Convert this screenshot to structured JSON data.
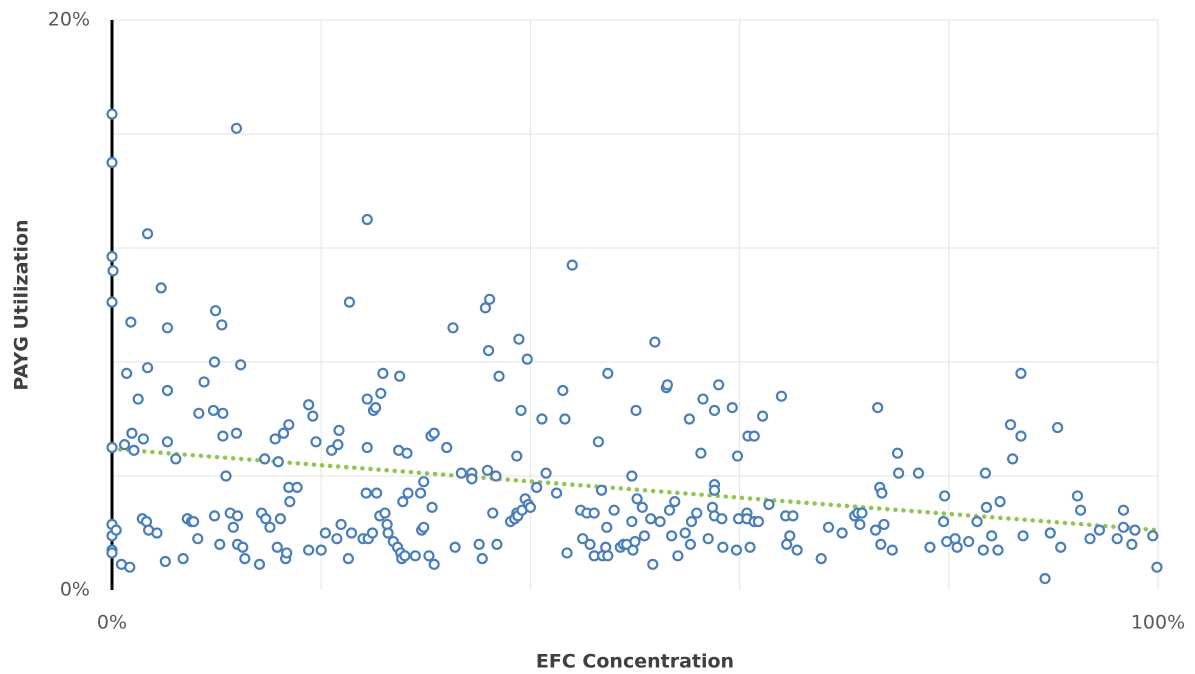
{
  "chart_data": {
    "type": "scatter",
    "x_label": "EFC Concentration",
    "y_label": "PAYG Utilization",
    "color": "#4a7ebb",
    "xlim": [
      0,
      100
    ],
    "ylim": [
      0,
      20
    ],
    "xticks": [
      {
        "value": 0,
        "label": "0%"
      },
      {
        "value": 100,
        "label": "100%"
      }
    ],
    "yticks": [
      {
        "value": 0,
        "label": "0%"
      },
      {
        "value": 20,
        "label": "20%"
      }
    ],
    "xgrid": [
      20,
      40,
      60,
      80,
      100
    ],
    "ygrid": [
      4,
      8,
      12,
      16,
      20
    ],
    "trendline": {
      "x": [
        0,
        100
      ],
      "y": [
        4.95,
        2.1
      ],
      "color": "#92c353"
    },
    "x": [
      0,
      0,
      0,
      0.1,
      0,
      0,
      0,
      0,
      0,
      0,
      0.4,
      0.9,
      1.2,
      1.4,
      1.7,
      1.8,
      1.9,
      2.1,
      2.5,
      2.9,
      3.0,
      3.3,
      3.4,
      3.4,
      3.5,
      4.3,
      4.7,
      5.1,
      5.3,
      5.3,
      5.3,
      6.1,
      6.8,
      7.2,
      7.6,
      7.8,
      8.2,
      8.3,
      8.8,
      9.7,
      9.8,
      9.8,
      9.9,
      10.3,
      10.5,
      10.6,
      10.6,
      10.9,
      11.3,
      11.6,
      11.9,
      11.9,
      12.0,
      12.0,
      12.3,
      12.5,
      12.7,
      14.1,
      14.3,
      14.6,
      14.7,
      15.1,
      15.6,
      15.8,
      15.9,
      16.1,
      16.4,
      16.6,
      16.7,
      16.9,
      16.9,
      17.0,
      17.7,
      18.8,
      18.8,
      19.2,
      19.5,
      20.0,
      20.4,
      21.0,
      21.6,
      21.7,
      21.5,
      21.9,
      22.6,
      22.7,
      22.9,
      24.0,
      24.3,
      24.4,
      24.4,
      24.5,
      24.4,
      24.9,
      25.0,
      25.2,
      25.3,
      25.6,
      25.7,
      25.9,
      26.1,
      26.3,
      26.4,
      26.9,
      27.3,
      27.4,
      27.5,
      27.6,
      27.7,
      27.8,
      28.0,
      28.2,
      28.3,
      29.0,
      29.5,
      29.6,
      29.8,
      29.8,
      30.3,
      30.5,
      30.6,
      30.8,
      30.8,
      32.0,
      32.6,
      32.8,
      33.4,
      34.4,
      34.4,
      35.1,
      35.4,
      35.7,
      35.9,
      36.0,
      36.1,
      36.4,
      36.7,
      36.8,
      37.0,
      38.1,
      38.5,
      38.7,
      38.7,
      38.8,
      38.9,
      39.1,
      39.2,
      39.5,
      39.7,
      39.8,
      40.0,
      40.6,
      41.1,
      41.5,
      42.5,
      43.1,
      43.3,
      43.5,
      44.0,
      44.8,
      45.0,
      45.4,
      45.7,
      46.1,
      46.1,
      46.5,
      46.8,
      46.9,
      47.2,
      47.3,
      47.4,
      47.4,
      48.0,
      48.6,
      48.9,
      49.2,
      49.7,
      49.7,
      49.8,
      50.0,
      50.1,
      50.2,
      50.7,
      50.9,
      51.5,
      51.7,
      51.9,
      52.4,
      53.0,
      53.1,
      53.3,
      53.5,
      53.8,
      54.1,
      54.8,
      55.2,
      55.3,
      55.4,
      55.9,
      56.3,
      56.5,
      57.0,
      57.4,
      57.6,
      57.6,
      57.6,
      57.6,
      58.0,
      58.3,
      58.4,
      59.3,
      59.7,
      59.8,
      59.9,
      60.7,
      60.7,
      60.8,
      61.0,
      61.4,
      61.4,
      61.8,
      62.2,
      62.8,
      64.0,
      64.4,
      64.5,
      64.8,
      65.1,
      65.5,
      67.8,
      68.5,
      69.8,
      71.0,
      71.3,
      71.5,
      71.7,
      73.0,
      73.2,
      73.4,
      73.5,
      73.6,
      73.8,
      74.6,
      75.1,
      75.2,
      77.1,
      78.2,
      79.5,
      79.6,
      79.8,
      80.6,
      80.8,
      81.9,
      82.7,
      83.3,
      83.5,
      83.6,
      84.1,
      84.7,
      84.9,
      85.9,
      86.1,
      86.9,
      86.9,
      87.1,
      89.2,
      89.7,
      90.4,
      90.7,
      92.3,
      92.6,
      93.5,
      94.4,
      96.1,
      96.7,
      96.7,
      97.5,
      97.8,
      99.5,
      99.9
    ],
    "y": [
      16.7,
      15.0,
      11.7,
      11.2,
      10.1,
      5.0,
      2.3,
      1.9,
      1.4,
      1.3,
      2.1,
      0.9,
      5.1,
      7.6,
      0.8,
      9.4,
      5.5,
      4.9,
      6.7,
      2.5,
      5.3,
      2.4,
      7.8,
      12.5,
      2.1,
      2.0,
      10.6,
      1.0,
      9.2,
      7.0,
      5.2,
      4.6,
      1.1,
      2.5,
      2.4,
      2.4,
      1.8,
      6.2,
      7.3,
      6.3,
      2.6,
      8.0,
      9.8,
      1.6,
      9.3,
      6.2,
      5.4,
      4.0,
      2.7,
      2.2,
      16.2,
      5.5,
      2.6,
      1.6,
      7.9,
      1.5,
      1.1,
      0.9,
      2.7,
      4.6,
      2.5,
      2.2,
      5.3,
      1.5,
      4.5,
      2.5,
      5.5,
      1.1,
      1.3,
      5.8,
      3.6,
      3.1,
      3.6,
      1.4,
      6.5,
      6.1,
      5.2,
      1.4,
      2.0,
      4.9,
      5.1,
      5.6,
      1.8,
      2.3,
      1.1,
      10.1,
      2.0,
      1.8,
      3.4,
      13.0,
      5.0,
      1.8,
      6.7,
      2.0,
      6.3,
      6.4,
      3.4,
      2.6,
      6.9,
      7.6,
      2.7,
      2.3,
      2.0,
      1.7,
      1.5,
      4.9,
      7.5,
      1.3,
      1.1,
      3.1,
      1.2,
      4.8,
      3.4,
      1.2,
      3.4,
      2.1,
      3.8,
      2.2,
      1.2,
      5.4,
      2.9,
      5.5,
      0.9,
      5.0,
      9.2,
      1.5,
      4.1,
      4.1,
      3.9,
      1.6,
      1.1,
      9.9,
      4.2,
      8.4,
      10.2,
      2.7,
      4.0,
      1.6,
      7.5,
      2.4,
      2.5,
      4.7,
      2.7,
      2.6,
      8.8,
      6.3,
      2.8,
      3.2,
      8.1,
      3.0,
      2.9,
      3.6,
      6.0,
      4.1,
      3.4,
      7.0,
      6.0,
      1.3,
      11.4,
      2.8,
      1.8,
      2.7,
      1.6,
      2.7,
      1.2,
      5.2,
      3.5,
      1.2,
      1.5,
      2.2,
      7.6,
      1.2,
      2.8,
      1.5,
      1.6,
      1.6,
      2.4,
      4.0,
      1.4,
      1.7,
      6.3,
      3.2,
      2.9,
      1.9,
      2.5,
      0.9,
      8.7,
      2.4,
      7.1,
      7.2,
      2.8,
      1.9,
      3.1,
      1.2,
      2.0,
      6.0,
      1.6,
      2.4,
      2.7,
      4.8,
      6.7,
      1.8,
      2.9,
      3.7,
      3.5,
      6.3,
      2.6,
      7.2,
      2.5,
      1.5,
      6.4,
      1.4,
      4.7,
      2.5,
      2.7,
      2.5,
      5.4,
      1.5,
      5.4,
      2.4,
      2.4,
      6.1,
      3.0,
      6.8,
      2.6,
      1.6,
      1.9,
      2.6,
      1.4,
      1.1,
      2.2,
      2.0,
      2.6,
      2.7,
      2.3,
      2.7,
      2.1,
      6.4,
      3.6,
      1.6,
      3.4,
      2.3,
      1.4,
      4.8,
      4.1,
      4.1,
      1.5,
      2.4,
      3.3,
      1.7,
      1.8,
      1.5,
      1.7,
      2.4,
      1.4,
      4.1,
      2.9,
      1.9,
      1.4,
      3.1,
      5.8,
      4.6,
      7.6,
      5.4,
      1.9,
      0.4,
      2.0,
      5.7,
      1.5,
      3.3,
      2.8,
      1.8,
      2.1,
      1.8,
      2.8,
      2.2,
      1.6,
      2.1,
      1.9,
      0.8
    ]
  }
}
